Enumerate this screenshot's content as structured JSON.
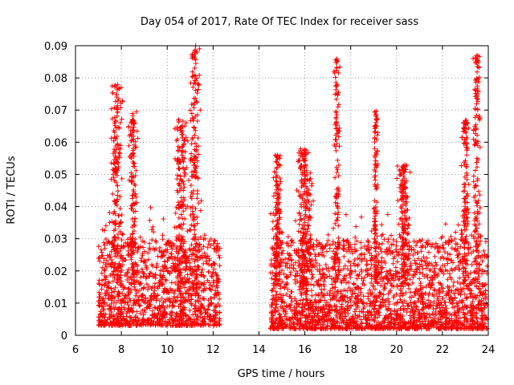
{
  "chart_data": {
    "type": "scatter",
    "title": "Day 054 of 2017, Rate Of TEC Index for receiver sass",
    "xlabel": "GPS time / hours",
    "ylabel": "ROTI / TECUs",
    "xlim": [
      6,
      24
    ],
    "ylim": [
      0,
      0.09
    ],
    "x_ticks": [
      "6",
      "8",
      "10",
      "12",
      "14",
      "16",
      "18",
      "20",
      "22",
      "24"
    ],
    "y_ticks": [
      "0",
      "0.01",
      "0.02",
      "0.03",
      "0.04",
      "0.05",
      "0.06",
      "0.07",
      "0.08",
      "0.09"
    ],
    "grid": true,
    "marker": "+",
    "color": "#ff0000",
    "series": [
      {
        "name": "ROTI",
        "description": "Dense cloud of ROTI samples; no data between ~12.3 h and ~14.5 h",
        "segments": [
          {
            "x_range": [
              7.0,
              12.3
            ],
            "baseline_range": [
              0.003,
              0.03
            ]
          },
          {
            "x_range": [
              14.5,
              23.95
            ],
            "baseline_range": [
              0.002,
              0.03
            ]
          }
        ],
        "spikes": [
          {
            "x_center": 7.8,
            "x_width": 0.9,
            "peak": 0.078
          },
          {
            "x_center": 8.5,
            "x_width": 0.6,
            "peak": 0.07
          },
          {
            "x_center": 10.6,
            "x_width": 0.9,
            "peak": 0.067
          },
          {
            "x_center": 11.2,
            "x_width": 0.9,
            "peak": 0.09
          },
          {
            "x_center": 14.8,
            "x_width": 0.6,
            "peak": 0.056
          },
          {
            "x_center": 16.0,
            "x_width": 1.2,
            "peak": 0.058
          },
          {
            "x_center": 17.4,
            "x_width": 0.4,
            "peak": 0.086
          },
          {
            "x_center": 19.1,
            "x_width": 0.3,
            "peak": 0.07
          },
          {
            "x_center": 20.3,
            "x_width": 0.8,
            "peak": 0.053
          },
          {
            "x_center": 23.0,
            "x_width": 0.6,
            "peak": 0.067
          },
          {
            "x_center": 23.5,
            "x_width": 0.6,
            "peak": 0.087
          }
        ]
      }
    ]
  }
}
